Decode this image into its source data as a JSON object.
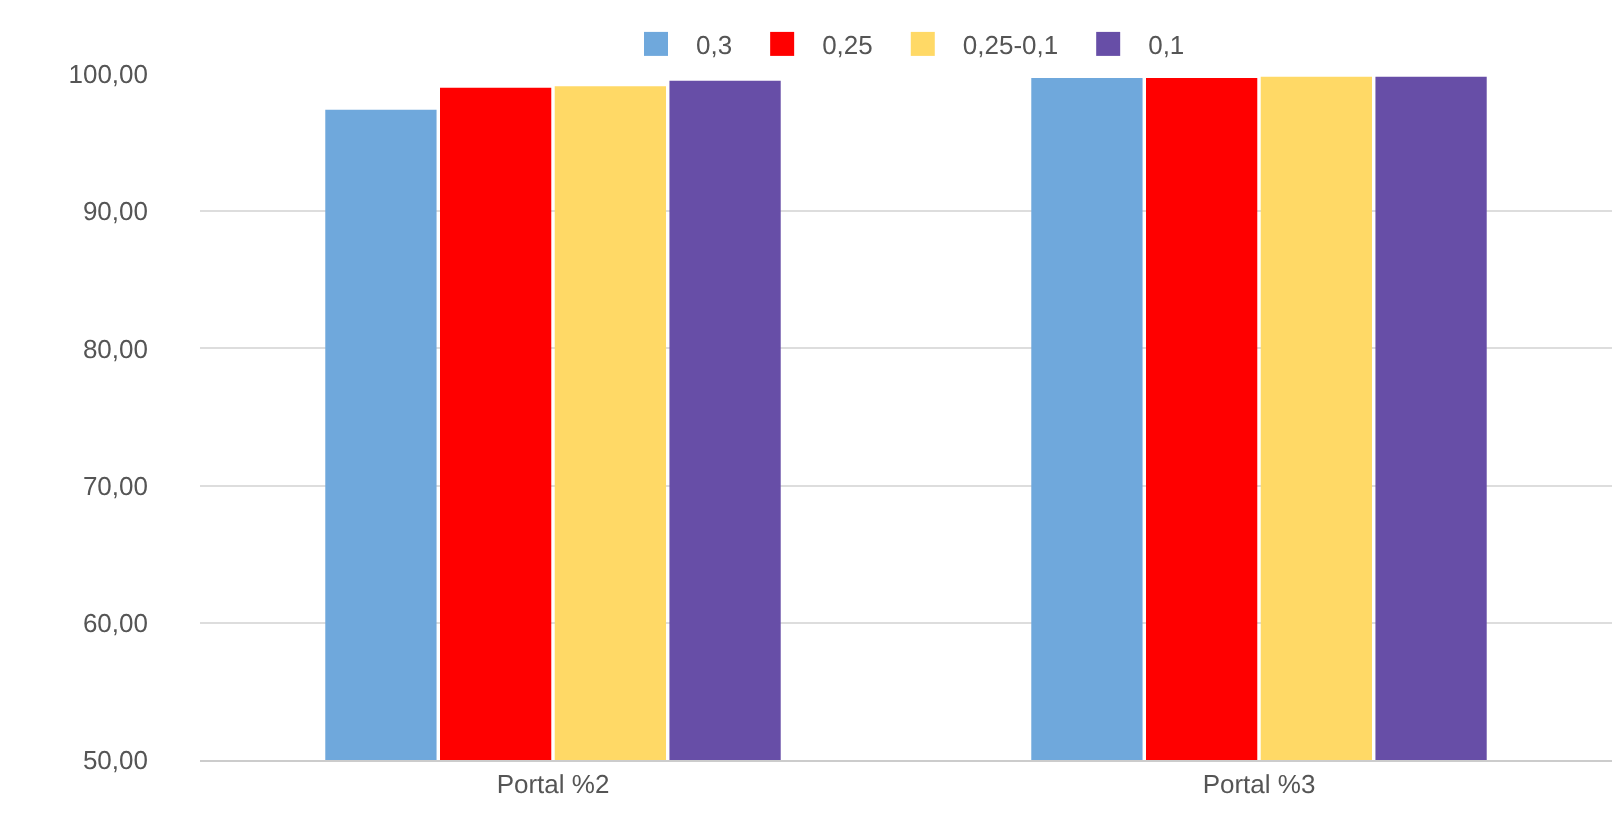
{
  "chart_data": {
    "type": "bar",
    "categories": [
      "Portal %2",
      "Portal %3"
    ],
    "series": [
      {
        "name": "0,3",
        "color": "#6fa8dc",
        "values": [
          97.4,
          99.7
        ]
      },
      {
        "name": "0,25",
        "color": "#ff0000",
        "values": [
          99.0,
          99.7
        ]
      },
      {
        "name": "0,25-0,1",
        "color": "#ffd966",
        "values": [
          99.1,
          99.8
        ]
      },
      {
        "name": "0,1",
        "color": "#674ea7",
        "values": [
          99.5,
          99.8
        ]
      }
    ],
    "ylim": [
      50,
      100
    ],
    "yticks": [
      {
        "value": 50,
        "label": "50,00"
      },
      {
        "value": 60,
        "label": "60,00"
      },
      {
        "value": 70,
        "label": "70,00"
      },
      {
        "value": 80,
        "label": "80,00"
      },
      {
        "value": 90,
        "label": "90,00"
      },
      {
        "value": 100,
        "label": "100,00"
      }
    ],
    "grid": "y",
    "legend": "top"
  }
}
